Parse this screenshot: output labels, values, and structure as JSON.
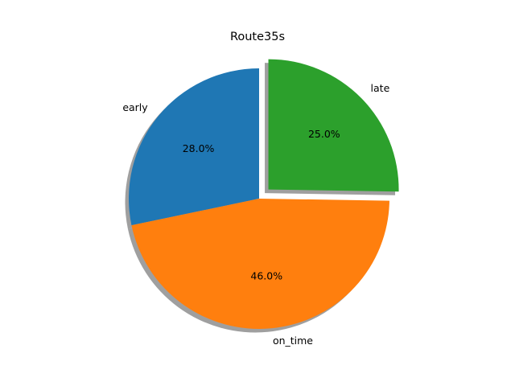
{
  "chart_data": {
    "type": "pie",
    "title": "Route35s",
    "categories": [
      "early",
      "on_time",
      "late"
    ],
    "values": [
      28.0,
      46.0,
      25.0
    ],
    "percent_labels": [
      "28.0%",
      "46.0%",
      "25.0%"
    ],
    "colors": [
      "#1f77b4",
      "#ff7f0e",
      "#2ca02c"
    ],
    "exploded": [
      false,
      false,
      true
    ],
    "shadow": true,
    "start_angle_deg": 90,
    "direction": "counterclockwise",
    "legend": "none"
  }
}
